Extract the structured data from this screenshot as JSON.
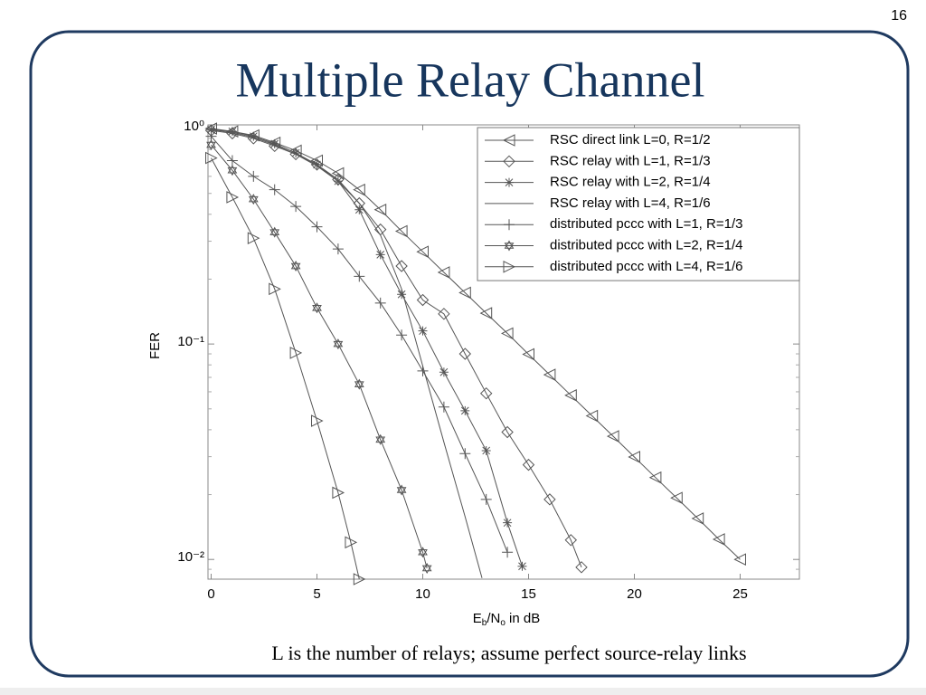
{
  "slide_number": "16",
  "title": "Multiple Relay Channel",
  "caption": "L is the number of relays; assume perfect source-relay links",
  "chart_data": {
    "type": "line",
    "xlabel": [
      "E",
      "b",
      "/N",
      "o",
      " in dB"
    ],
    "ylabel": "FER",
    "xlim": [
      -0.15,
      27.8
    ],
    "xticks": [
      0,
      5,
      10,
      15,
      20,
      25
    ],
    "ylim": [
      0.0081,
      1.04
    ],
    "ylog": true,
    "yticks": [
      {
        "value": 1,
        "label": "10⁰"
      },
      {
        "value": 0.1,
        "label": "10⁻¹"
      },
      {
        "value": 0.01,
        "label": "10⁻²"
      }
    ],
    "grid": false,
    "legend": "upper right",
    "series": [
      {
        "name": "RSC direct link L=0, R=1/2",
        "color": "#555555",
        "marker": "triangle-left",
        "x": [
          0,
          1,
          2,
          3,
          4,
          5,
          6,
          7,
          8,
          9,
          10,
          11,
          12,
          13,
          14,
          15,
          16,
          17,
          18,
          19,
          20,
          21,
          22,
          23,
          24,
          25
        ],
        "values": [
          1.0,
          0.97,
          0.93,
          0.86,
          0.79,
          0.71,
          0.62,
          0.52,
          0.42,
          0.334,
          0.268,
          0.215,
          0.173,
          0.139,
          0.112,
          0.0896,
          0.072,
          0.0578,
          0.0464,
          0.0373,
          0.0299,
          0.024,
          0.0193,
          0.0155,
          0.0124,
          0.01
        ]
      },
      {
        "name": "RSC relay with L=1, R=1/3",
        "color": "#555555",
        "marker": "diamond",
        "x": [
          0,
          1,
          2,
          3,
          4,
          5,
          6,
          7,
          8,
          9,
          10,
          11,
          12,
          13,
          14,
          15,
          16,
          17,
          17.5
        ],
        "values": [
          0.98,
          0.95,
          0.9,
          0.83,
          0.76,
          0.68,
          0.58,
          0.45,
          0.34,
          0.23,
          0.16,
          0.138,
          0.09,
          0.059,
          0.039,
          0.0275,
          0.019,
          0.0123,
          0.0092
        ]
      },
      {
        "name": "RSC relay with L=2, R=1/4",
        "color": "#555555",
        "marker": "star",
        "x": [
          0,
          1,
          2,
          3,
          4,
          5,
          6,
          7,
          8,
          9,
          10,
          11,
          12,
          13,
          14,
          14.7
        ],
        "values": [
          0.99,
          0.97,
          0.92,
          0.85,
          0.77,
          0.68,
          0.57,
          0.42,
          0.26,
          0.17,
          0.115,
          0.074,
          0.049,
          0.032,
          0.0148,
          0.0093
        ]
      },
      {
        "name": "RSC relay with L=4, R=1/6",
        "color": "#555555",
        "marker": "none",
        "x": [
          0,
          1,
          2,
          3,
          4,
          5,
          6,
          7,
          8,
          9,
          10,
          11,
          12,
          12.8
        ],
        "values": [
          0.99,
          0.96,
          0.91,
          0.84,
          0.76,
          0.67,
          0.57,
          0.45,
          0.32,
          0.18,
          0.079,
          0.035,
          0.0158,
          0.0082
        ]
      },
      {
        "name": "distributed pccc with L=1, R=1/3",
        "color": "#555555",
        "marker": "plus",
        "x": [
          0,
          1,
          2,
          3,
          4,
          5,
          6,
          7,
          8,
          9,
          10,
          11,
          12,
          13,
          14
        ],
        "values": [
          0.92,
          0.71,
          0.6,
          0.52,
          0.435,
          0.35,
          0.276,
          0.206,
          0.155,
          0.11,
          0.075,
          0.051,
          0.031,
          0.019,
          0.0108
        ]
      },
      {
        "name": "distributed pccc with L=2, R=1/4",
        "color": "#555555",
        "marker": "hexagon",
        "x": [
          0,
          1,
          2,
          3,
          4,
          5,
          6,
          7,
          8,
          9,
          10,
          10.2
        ],
        "values": [
          0.84,
          0.64,
          0.47,
          0.33,
          0.23,
          0.147,
          0.1,
          0.065,
          0.036,
          0.021,
          0.0108,
          0.0091
        ]
      },
      {
        "name": "distributed pccc with L=4, R=1/6",
        "color": "#555555",
        "marker": "triangle-right",
        "x": [
          0,
          1,
          2,
          3,
          4,
          5,
          6,
          6.6,
          7
        ],
        "values": [
          0.73,
          0.48,
          0.31,
          0.18,
          0.091,
          0.044,
          0.0204,
          0.012,
          0.0081
        ]
      }
    ]
  }
}
